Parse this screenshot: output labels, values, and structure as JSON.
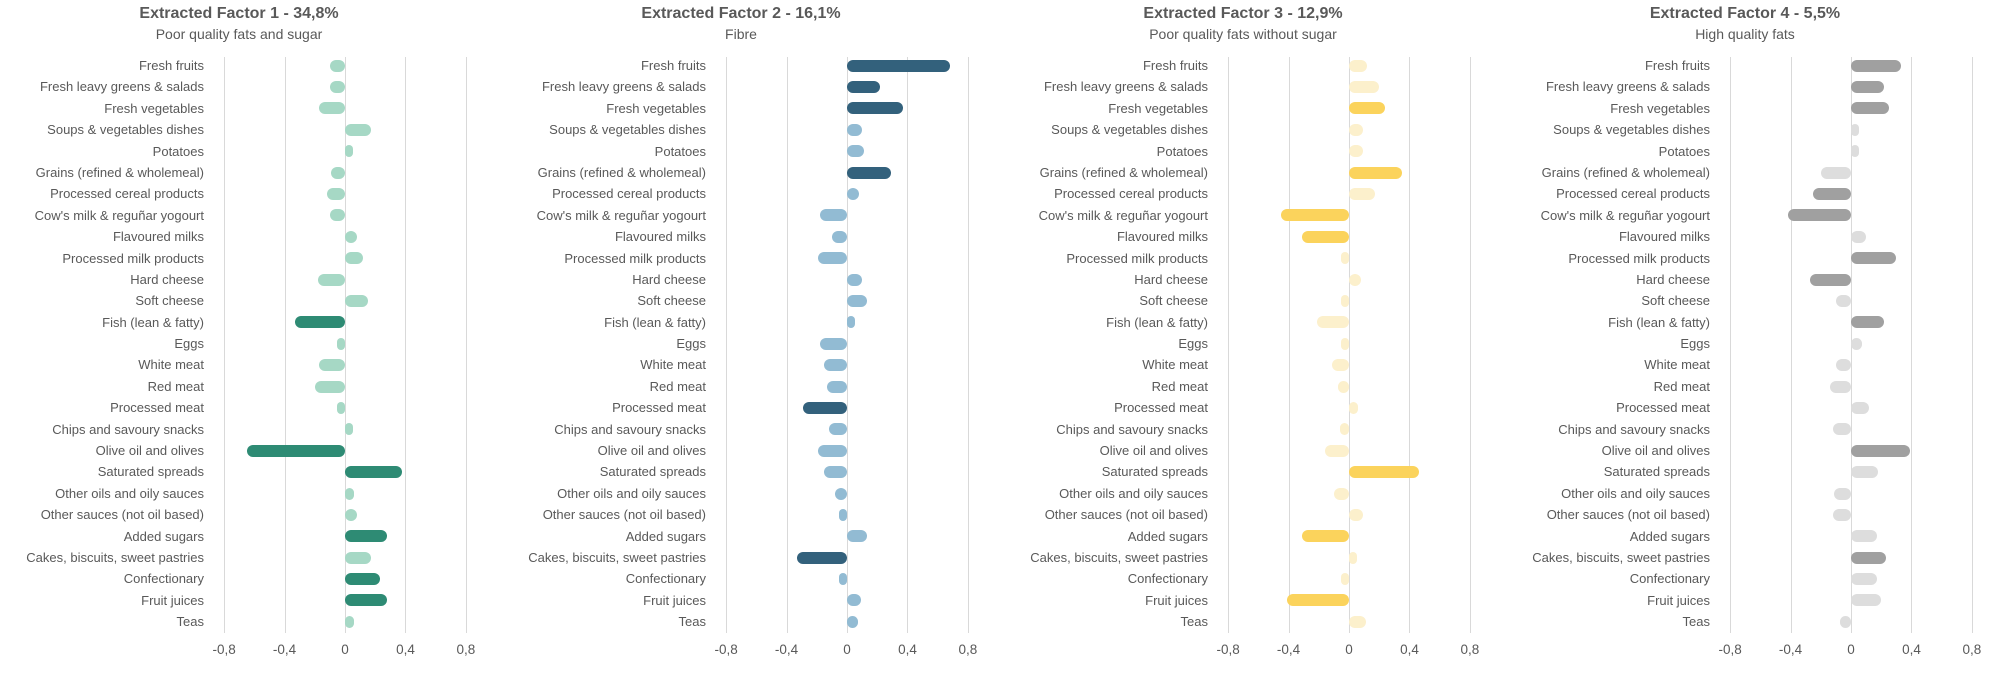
{
  "chart_data": {
    "type": "bar",
    "orientation": "horizontal",
    "grid": true,
    "legend_position": "none",
    "xlim": [
      -0.88,
      0.88
    ],
    "x_ticks": {
      "values": [
        -0.8,
        -0.4,
        0,
        0.4,
        0.8
      ],
      "labels": [
        "-0,8",
        "-0,4",
        "0",
        "0,4",
        "0,8"
      ]
    },
    "text_color": "#595959",
    "gridline_color": "#d9d9d9",
    "categories": [
      "Fresh fruits",
      "Fresh leavy greens & salads",
      "Fresh vegetables",
      "Soups & vegetables dishes",
      "Potatoes",
      "Grains (refined & wholemeal)",
      "Processed cereal products",
      "Cow's milk & reguñar yogourt",
      "Flavoured milks",
      "Processed milk products",
      "Hard cheese",
      "Soft cheese",
      "Fish (lean & fatty)",
      "Eggs",
      "White meat",
      "Red meat",
      "Processed meat",
      "Chips and savoury snacks",
      "Olive oil and olives",
      "Saturated spreads",
      "Other oils and oily sauces",
      "Other sauces (not oil based)",
      "Added sugars",
      "Cakes, biscuits, sweet pastries",
      "Confectionary",
      "Fruit juices",
      "Teas"
    ],
    "panels": [
      {
        "title": "Extracted Factor 1 - 34,8%",
        "subtitle": "Poor quality fats and sugar",
        "colors": {
          "regular": "#a6d8c5",
          "highlight": "#2e8b74"
        },
        "values": [
          -0.1,
          -0.1,
          -0.17,
          0.17,
          0.05,
          -0.09,
          -0.12,
          -0.1,
          0.08,
          0.12,
          -0.18,
          0.15,
          -0.33,
          -0.05,
          -0.17,
          -0.2,
          -0.04,
          0.05,
          -0.65,
          0.38,
          0.06,
          0.08,
          0.28,
          0.17,
          0.23,
          0.28,
          0.06
        ],
        "highlighted": [
          false,
          false,
          false,
          false,
          false,
          false,
          false,
          false,
          false,
          false,
          false,
          false,
          true,
          false,
          false,
          false,
          false,
          false,
          true,
          true,
          false,
          false,
          true,
          false,
          true,
          true,
          false
        ]
      },
      {
        "title": "Extracted Factor 2 - 16,1%",
        "subtitle": "Fibre",
        "colors": {
          "regular": "#92bbd3",
          "highlight": "#33617c"
        },
        "values": [
          0.68,
          0.22,
          0.37,
          0.1,
          0.11,
          0.29,
          0.08,
          -0.18,
          -0.1,
          -0.19,
          0.1,
          0.13,
          0.05,
          -0.18,
          -0.15,
          -0.13,
          -0.29,
          -0.12,
          -0.19,
          -0.15,
          -0.08,
          -0.05,
          0.13,
          -0.33,
          -0.04,
          0.09,
          0.07
        ],
        "highlighted": [
          true,
          true,
          true,
          false,
          false,
          true,
          false,
          false,
          false,
          false,
          false,
          false,
          false,
          false,
          false,
          false,
          true,
          false,
          false,
          false,
          false,
          false,
          false,
          true,
          false,
          false,
          false
        ]
      },
      {
        "title": "Extracted Factor 3 - 12,9%",
        "subtitle": "Poor quality fats without sugar",
        "colors": {
          "regular": "#fcf0cc",
          "highlight": "#fbd35c"
        },
        "values": [
          0.12,
          0.2,
          0.24,
          0.09,
          0.09,
          0.35,
          0.17,
          -0.45,
          -0.31,
          -0.05,
          0.08,
          -0.03,
          -0.21,
          -0.05,
          -0.11,
          -0.07,
          0.06,
          -0.06,
          -0.16,
          0.46,
          -0.1,
          0.09,
          -0.31,
          0.05,
          -0.04,
          -0.41,
          0.11
        ],
        "highlighted": [
          false,
          false,
          true,
          false,
          false,
          true,
          false,
          true,
          true,
          false,
          false,
          false,
          false,
          false,
          false,
          false,
          false,
          false,
          false,
          true,
          false,
          false,
          true,
          false,
          false,
          true,
          false
        ]
      },
      {
        "title": "Extracted Factor 4 - 5,5%",
        "subtitle": "High quality fats",
        "colors": {
          "regular": "#dddddd",
          "highlight": "#a0a0a0"
        },
        "values": [
          0.33,
          0.22,
          0.25,
          0.03,
          0.03,
          -0.2,
          -0.25,
          -0.42,
          0.1,
          0.3,
          -0.27,
          -0.1,
          0.22,
          0.07,
          -0.1,
          -0.14,
          0.12,
          -0.12,
          0.39,
          0.18,
          -0.11,
          -0.12,
          0.17,
          0.23,
          0.17,
          0.2,
          -0.07
        ],
        "highlighted": [
          true,
          true,
          true,
          false,
          false,
          false,
          true,
          true,
          false,
          true,
          true,
          false,
          true,
          false,
          false,
          false,
          false,
          false,
          true,
          false,
          false,
          false,
          false,
          true,
          false,
          false,
          false
        ]
      }
    ]
  }
}
